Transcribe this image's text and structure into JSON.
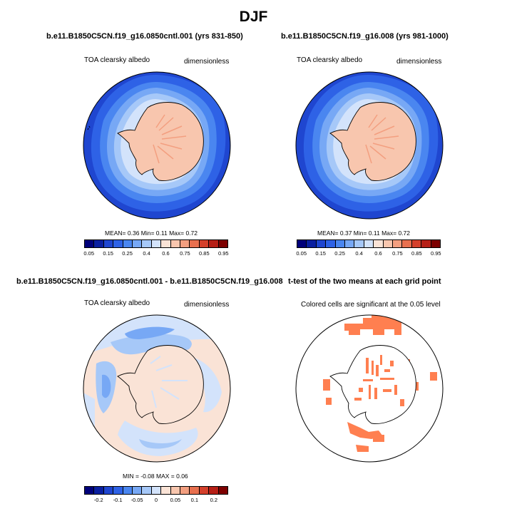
{
  "figure_title": "DJF",
  "panels": {
    "p1": {
      "title": "b.e11.B1850C5CN.f19_g16.0850cntl.001 (yrs 831-850)",
      "left_label": "TOA clearsky albedo",
      "right_label": "dimensionless",
      "stats": "MEAN=  0.36  Min=  0.11  Max=  0.72"
    },
    "p2": {
      "title": "b.e11.B1850C5CN.f19_g16.008 (yrs 981-1000)",
      "left_label": "TOA clearsky albedo",
      "right_label": "dimensionless",
      "stats": "MEAN=  0.37  Min=  0.11  Max=  0.72"
    },
    "p3": {
      "title": "b.e11.B1850C5CN.f19_g16.0850cntl.001 - b.e11.B1850C5CN.f19_g16.008",
      "left_label": "TOA clearsky albedo",
      "right_label": "dimensionless",
      "stats": "MIN =  -0.08 MAX =  0.06"
    },
    "p4": {
      "title": "t-test of the two means at each grid point",
      "left_label": "Colored cells are significant at the 0.05 level"
    }
  },
  "colorbar_abs": {
    "colors": [
      "#00007a",
      "#0a1fa0",
      "#1f46d0",
      "#2e62e6",
      "#4a86f0",
      "#77a8f5",
      "#a6c8f8",
      "#d3e3fb",
      "#fae3d6",
      "#f8c6ae",
      "#f39f80",
      "#e8704f",
      "#d4402b",
      "#b61f16",
      "#7d0000"
    ],
    "tick_labels": [
      "0.05",
      "0.15",
      "0.25",
      "0.4",
      "0.6",
      "0.75",
      "0.85",
      "0.95"
    ]
  },
  "colorbar_diff": {
    "colors": [
      "#00007a",
      "#0a1fa0",
      "#1f46d0",
      "#2e62e6",
      "#4a86f0",
      "#77a8f5",
      "#a6c8f8",
      "#d3e3fb",
      "#fae3d6",
      "#f8c6ae",
      "#f39f80",
      "#e8704f",
      "#d4402b",
      "#b61f16",
      "#7d0000"
    ],
    "tick_labels": [
      "-0.2",
      "-0.1",
      "-0.05",
      "0",
      "0.05",
      "0.1",
      "0.2"
    ]
  },
  "chart_data": [
    {
      "type": "heatmap",
      "panel": "p1",
      "colorbar_levels": [
        0.05,
        0.15,
        0.25,
        0.4,
        0.6,
        0.75,
        0.85,
        0.95
      ],
      "stats": {
        "mean": 0.36,
        "min": 0.11,
        "max": 0.72
      }
    },
    {
      "type": "heatmap",
      "panel": "p2",
      "colorbar_levels": [
        0.05,
        0.15,
        0.25,
        0.4,
        0.6,
        0.75,
        0.85,
        0.95
      ],
      "stats": {
        "mean": 0.37,
        "min": 0.11,
        "max": 0.72
      }
    },
    {
      "type": "heatmap",
      "panel": "p3",
      "colorbar_levels": [
        -0.2,
        -0.1,
        -0.05,
        0,
        0.05,
        0.1,
        0.2
      ],
      "stats": {
        "min": -0.08,
        "max": 0.06
      }
    },
    {
      "type": "heatmap",
      "panel": "p4",
      "significance_level": 0.05,
      "significant_color": "#ff7f50"
    }
  ]
}
